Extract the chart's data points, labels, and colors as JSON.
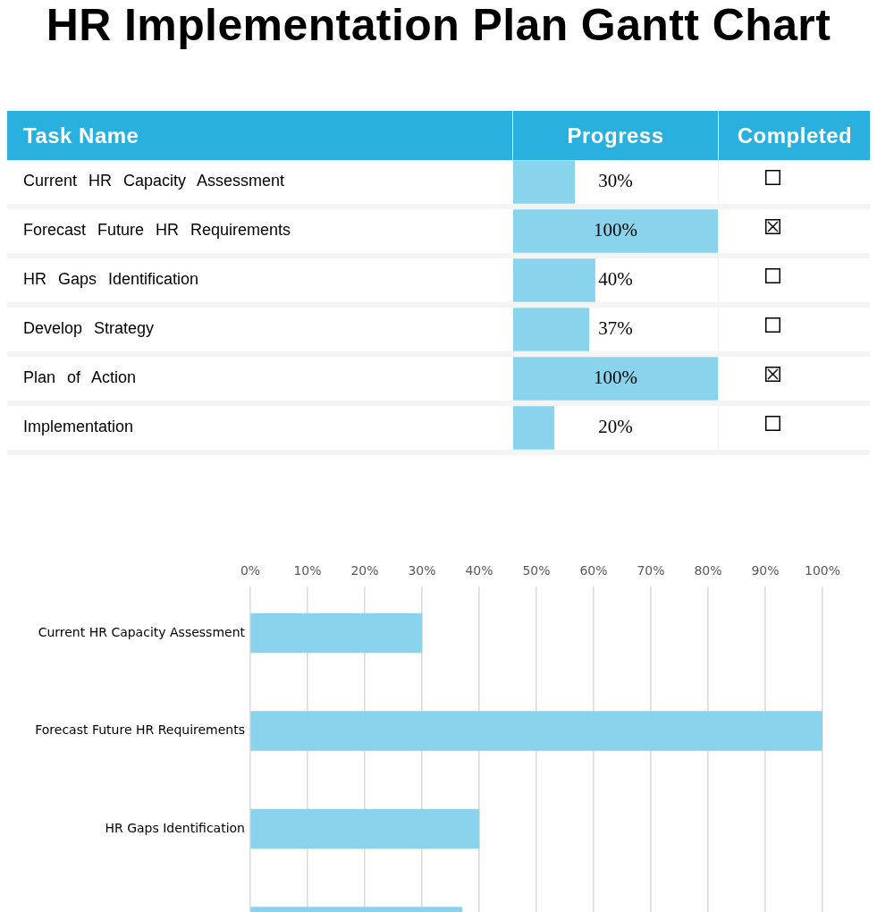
{
  "chart_data": [
    {
      "type": "bar",
      "orientation": "horizontal",
      "title": "HR Implementation Plan Gantt Chart",
      "ylabel": "Task Name",
      "xlabel": "Progress",
      "annotations": [
        "Completed"
      ],
      "categories": [
        "Current HR Capacity Assessment",
        "Forecast Future HR Requirements",
        "HR Gaps Identification",
        "Develop Strategy",
        "Plan of Action",
        "Implementation"
      ],
      "values": [
        30,
        100,
        40,
        37,
        100,
        20
      ],
      "value_labels": [
        "30%",
        "100%",
        "40%",
        "37%",
        "100%",
        "20%"
      ],
      "color": "#89d4ec",
      "tick_labels": "y",
      "grid": true
    },
    {
      "type": "bar",
      "orientation": "horizontal",
      "categories": [
        "Current HR Capacity Assessment",
        "Forecast Future HR Requirements",
        "HR Gaps Identification",
        null
      ],
      "values": [
        30,
        100,
        40,
        37
      ],
      "color": "#89d4ec",
      "xlim": [
        0,
        100
      ],
      "xticks": [
        {
          "value": 0,
          "label": "0%"
        },
        {
          "value": 10,
          "label": "10%"
        },
        {
          "value": 20,
          "label": "20%"
        },
        {
          "value": 30,
          "label": "30%"
        },
        {
          "value": 40,
          "label": "40%"
        },
        {
          "value": 50,
          "label": "50%"
        },
        {
          "value": 60,
          "label": "60%"
        },
        {
          "value": 70,
          "label": "70%"
        },
        {
          "value": 80,
          "label": "80%"
        },
        {
          "value": 90,
          "label": "90%"
        },
        {
          "value": 100,
          "label": "100%"
        }
      ],
      "grid": "x"
    }
  ]
}
